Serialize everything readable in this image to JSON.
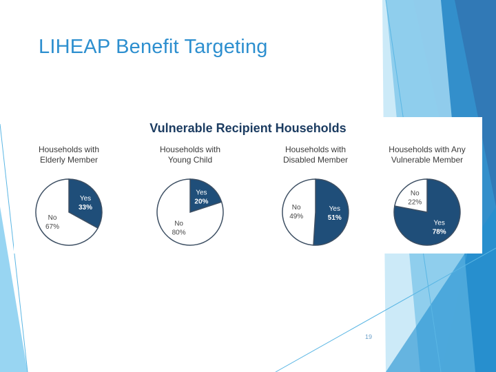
{
  "slide": {
    "title": "LIHEAP Benefit Targeting",
    "page_number": "19"
  },
  "colors": {
    "title": "#2d8fcf",
    "yes_slice": "#1f4e79",
    "no_slice": "#ffffff",
    "outline": "#3d4f63",
    "chart_title": "#1c3c61",
    "deco_dark": "#1f6eb0",
    "deco_mid": "#34a3dc",
    "deco_light": "#8fd0f0"
  },
  "chart_data": {
    "type": "pie",
    "title": "Vulnerable Recipient Households",
    "charts": [
      {
        "title_lines": [
          "Households with",
          "Elderly Member"
        ],
        "slices": [
          {
            "label": "Yes",
            "value": 33,
            "display": "33%"
          },
          {
            "label": "No",
            "value": 67,
            "display": "67%"
          }
        ]
      },
      {
        "title_lines": [
          "Households with",
          "Young Child"
        ],
        "slices": [
          {
            "label": "Yes",
            "value": 20,
            "display": "20%"
          },
          {
            "label": "No",
            "value": 80,
            "display": "80%"
          }
        ]
      },
      {
        "title_lines": [
          "Households with",
          "Disabled Member"
        ],
        "slices": [
          {
            "label": "Yes",
            "value": 51,
            "display": "51%"
          },
          {
            "label": "No",
            "value": 49,
            "display": "49%"
          }
        ]
      },
      {
        "title_lines": [
          "Households with Any",
          "Vulnerable Member"
        ],
        "slices": [
          {
            "label": "Yes",
            "value": 78,
            "display": "78%"
          },
          {
            "label": "No",
            "value": 22,
            "display": "22%"
          }
        ]
      }
    ]
  }
}
